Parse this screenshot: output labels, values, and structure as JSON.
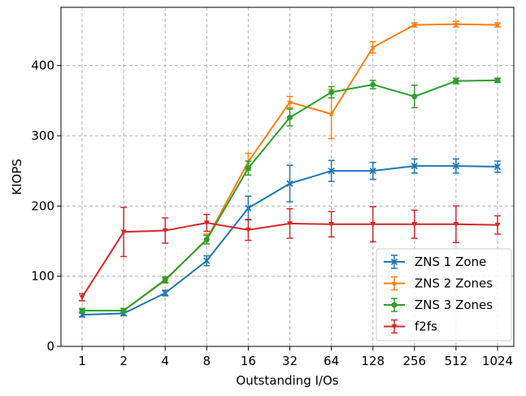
{
  "chart_data": {
    "type": "line",
    "title": "",
    "xlabel": "Outstanding I/Os",
    "ylabel": "KIOPS",
    "x": [
      "1",
      "2",
      "4",
      "8",
      "16",
      "32",
      "64",
      "128",
      "256",
      "512",
      "1024"
    ],
    "ylim": [
      0,
      483
    ],
    "yticks": [
      "0",
      "100",
      "200",
      "300",
      "400"
    ],
    "grid": true,
    "legend_position": "bottom-right",
    "series": [
      {
        "name": "ZNS 1 Zone",
        "color": "#1f77b4",
        "marker": "x",
        "values": [
          45,
          47,
          76,
          122,
          197,
          232,
          250,
          250,
          257,
          257,
          256
        ],
        "errors": [
          3,
          3,
          4,
          7,
          17,
          26,
          15,
          12,
          10,
          10,
          8
        ]
      },
      {
        "name": "ZNS 2 Zones",
        "color": "#ff7f0e",
        "marker": "star",
        "values": [
          51,
          51,
          94,
          153,
          263,
          348,
          331,
          426,
          458,
          459,
          458
        ],
        "errors": [
          3,
          3,
          4,
          7,
          12,
          8,
          35,
          8,
          3,
          4,
          3
        ]
      },
      {
        "name": "ZNS 3 Zones",
        "color": "#2ca02c",
        "marker": "circle",
        "values": [
          51,
          51,
          95,
          152,
          254,
          326,
          362,
          373,
          356,
          378,
          379
        ],
        "errors": [
          3,
          3,
          4,
          6,
          10,
          12,
          8,
          6,
          16,
          4,
          3
        ]
      },
      {
        "name": "f2fs",
        "color": "#d62728",
        "marker": "triangle-down",
        "values": [
          70,
          163,
          165,
          176,
          166,
          175,
          174,
          174,
          174,
          174,
          173
        ],
        "errors": [
          5,
          35,
          18,
          12,
          15,
          21,
          18,
          25,
          20,
          26,
          13
        ]
      }
    ]
  }
}
